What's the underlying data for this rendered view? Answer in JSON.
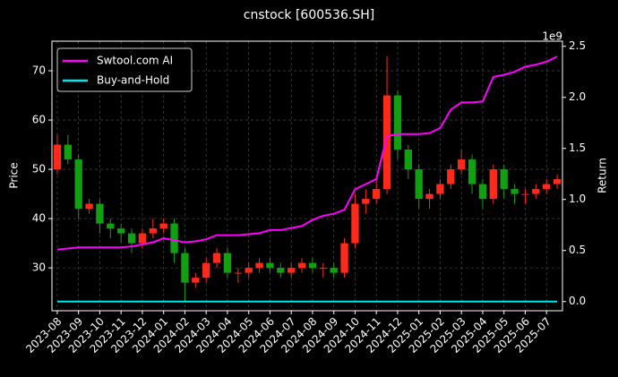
{
  "chart_data": {
    "type": "candlestick",
    "title": "cnstock [600536.SH]",
    "y_label": "Price",
    "y2_label": "Return",
    "y2_offset_label": "1e9",
    "categories": [
      "2023-08",
      null,
      "2023-09",
      null,
      "2023-10",
      null,
      "2023-11",
      null,
      "2023-12",
      null,
      "2024-01",
      null,
      "2024-02",
      null,
      "2024-03",
      null,
      "2024-04",
      null,
      "2024-05",
      null,
      "2024-06",
      null,
      "2024-07",
      null,
      "2024-08",
      null,
      "2024-09",
      null,
      "2024-10",
      null,
      "2024-11",
      null,
      "2024-12",
      null,
      "2025-01",
      null,
      "2025-02",
      null,
      "2025-03",
      null,
      "2025-04",
      null,
      "2025-05",
      null,
      "2025-06",
      null,
      "2025-07",
      null
    ],
    "open": [
      50,
      55,
      52,
      42,
      43,
      39,
      38,
      37,
      35,
      37,
      38,
      39,
      33,
      27,
      28,
      31,
      33,
      29,
      29,
      30,
      31,
      30,
      29,
      30,
      31,
      30,
      30,
      29,
      35,
      43,
      44,
      46,
      65,
      54,
      50,
      44,
      45,
      47,
      50,
      52,
      47,
      44,
      50,
      46,
      45,
      45,
      46,
      47
    ],
    "high": [
      57,
      57,
      53,
      44,
      44,
      40,
      39,
      38,
      38,
      40,
      40,
      40,
      34,
      29,
      32,
      34,
      34,
      30,
      31,
      32,
      32,
      31,
      31,
      32,
      32,
      31,
      31,
      36,
      45,
      46,
      48,
      73,
      66,
      55,
      51,
      46,
      48,
      51,
      54,
      53,
      48,
      51,
      51,
      47,
      46,
      47,
      48,
      49
    ],
    "low": [
      49,
      51,
      40,
      41,
      37,
      36,
      35,
      33,
      34,
      36,
      37,
      31,
      23,
      26,
      27,
      30,
      28,
      27,
      28,
      29,
      29,
      28,
      28,
      29,
      29,
      28,
      28,
      28,
      34,
      41,
      43,
      45,
      52,
      48,
      42,
      42,
      44,
      46,
      49,
      45,
      42,
      43,
      44,
      43,
      43,
      44,
      45,
      46
    ],
    "close": [
      55,
      52,
      42,
      43,
      39,
      38,
      37,
      35,
      37,
      38,
      39,
      33,
      27,
      28,
      31,
      33,
      29,
      29,
      30,
      31,
      30,
      29,
      30,
      31,
      30,
      30,
      29,
      35,
      43,
      44,
      46,
      65,
      54,
      50,
      44,
      45,
      47,
      50,
      52,
      47,
      44,
      50,
      46,
      45,
      45,
      46,
      47,
      48
    ],
    "up_color": "#ff2a1a",
    "down_color": "#12a012",
    "series": [
      {
        "name": "Swtool.com AI",
        "color": "#ff00ff",
        "axis": "y2",
        "values": [
          0.51,
          0.52,
          0.53,
          0.53,
          0.53,
          0.53,
          0.53,
          0.54,
          0.56,
          0.58,
          0.62,
          0.6,
          0.58,
          0.59,
          0.61,
          0.65,
          0.65,
          0.65,
          0.66,
          0.67,
          0.7,
          0.7,
          0.72,
          0.74,
          0.8,
          0.84,
          0.86,
          0.9,
          1.1,
          1.15,
          1.2,
          1.62,
          1.64,
          1.64,
          1.64,
          1.65,
          1.7,
          1.88,
          1.95,
          1.95,
          1.96,
          2.2,
          2.22,
          2.25,
          2.3,
          2.32,
          2.35,
          2.4
        ]
      },
      {
        "name": "Buy-and-Hold",
        "color": "#00e5ee",
        "axis": "y2",
        "values": [
          0,
          0,
          0,
          0,
          0,
          0,
          0,
          0,
          0,
          0,
          0,
          0,
          0,
          0,
          0,
          0,
          0,
          0,
          0,
          0,
          0,
          0,
          0,
          0,
          0,
          0,
          0,
          0,
          0,
          0,
          0,
          0,
          0,
          0,
          0,
          0,
          0,
          0,
          0,
          0,
          0,
          0,
          0,
          0,
          0,
          0,
          0,
          0
        ]
      }
    ],
    "ylim": [
      21.3,
      76
    ],
    "yticks": [
      30,
      40,
      50,
      60,
      70
    ],
    "y2lim": [
      -0.09,
      2.55
    ],
    "y2ticks": [
      {
        "value": 0,
        "label": "0.0"
      },
      {
        "value": 0.5,
        "label": "0.5"
      },
      {
        "value": 1,
        "label": "1.0"
      },
      {
        "value": 1.5,
        "label": "1.5"
      },
      {
        "value": 2,
        "label": "2.0"
      },
      {
        "value": 2.5,
        "label": "2.5"
      }
    ],
    "grid": true,
    "legend": "upper left"
  }
}
